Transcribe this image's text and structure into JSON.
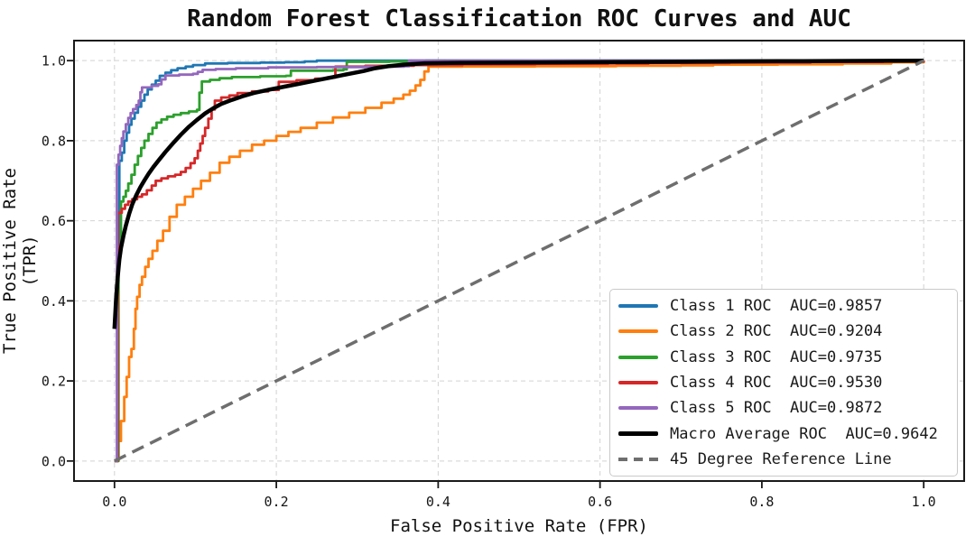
{
  "figure": {
    "background": "#ffffff"
  },
  "chart_data": {
    "type": "line",
    "title": "Random Forest Classification ROC Curves and AUC",
    "xlabel": "False Positive Rate (FPR)",
    "ylabel": "True Positive Rate (TPR)",
    "xlim": [
      -0.05,
      1.05
    ],
    "ylim": [
      -0.05,
      1.05
    ],
    "xticks": [
      0.0,
      0.2,
      0.4,
      0.6,
      0.8,
      1.0
    ],
    "yticks": [
      0.0,
      0.2,
      0.4,
      0.6,
      0.8,
      1.0
    ],
    "grid": true,
    "grid_color": "#d2d2d2",
    "frame_color": "#1a1a1a",
    "legend_position": "lower right",
    "series": [
      {
        "name": "Class 1 ROC",
        "auc": 0.9857,
        "label": "Class 1 ROC  AUC=0.9857",
        "color": "#1f77b4",
        "width": 2.8,
        "step": true,
        "points": [
          [
            0,
            0
          ],
          [
            0.004,
            0.18
          ],
          [
            0.004,
            0.52
          ],
          [
            0.006,
            0.75
          ],
          [
            0.009,
            0.77
          ],
          [
            0.012,
            0.8
          ],
          [
            0.015,
            0.82
          ],
          [
            0.018,
            0.84
          ],
          [
            0.021,
            0.855
          ],
          [
            0.025,
            0.87
          ],
          [
            0.029,
            0.885
          ],
          [
            0.033,
            0.9
          ],
          [
            0.037,
            0.915
          ],
          [
            0.041,
            0.928
          ],
          [
            0.046,
            0.94
          ],
          [
            0.051,
            0.95
          ],
          [
            0.056,
            0.962
          ],
          [
            0.063,
            0.97
          ],
          [
            0.07,
            0.976
          ],
          [
            0.078,
            0.981
          ],
          [
            0.088,
            0.985
          ],
          [
            0.097,
            0.989
          ],
          [
            0.112,
            0.993
          ],
          [
            0.14,
            0.994
          ],
          [
            0.18,
            0.995
          ],
          [
            0.21,
            0.996
          ],
          [
            0.235,
            0.998
          ],
          [
            0.25,
            1.0
          ],
          [
            1,
            1
          ]
        ]
      },
      {
        "name": "Class 2 ROC",
        "auc": 0.9204,
        "label": "Class 2 ROC  AUC=0.9204",
        "color": "#ff7f0e",
        "width": 2.8,
        "step": true,
        "points": [
          [
            0,
            0
          ],
          [
            0.004,
            0.05
          ],
          [
            0.008,
            0.1
          ],
          [
            0.012,
            0.16
          ],
          [
            0.015,
            0.21
          ],
          [
            0.018,
            0.26
          ],
          [
            0.021,
            0.28
          ],
          [
            0.024,
            0.33
          ],
          [
            0.026,
            0.38
          ],
          [
            0.028,
            0.41
          ],
          [
            0.031,
            0.44
          ],
          [
            0.034,
            0.46
          ],
          [
            0.038,
            0.485
          ],
          [
            0.042,
            0.505
          ],
          [
            0.047,
            0.525
          ],
          [
            0.053,
            0.55
          ],
          [
            0.06,
            0.575
          ],
          [
            0.068,
            0.61
          ],
          [
            0.077,
            0.64
          ],
          [
            0.087,
            0.66
          ],
          [
            0.097,
            0.68
          ],
          [
            0.107,
            0.7
          ],
          [
            0.118,
            0.72
          ],
          [
            0.13,
            0.745
          ],
          [
            0.142,
            0.76
          ],
          [
            0.155,
            0.775
          ],
          [
            0.17,
            0.79
          ],
          [
            0.185,
            0.8
          ],
          [
            0.2,
            0.812
          ],
          [
            0.215,
            0.822
          ],
          [
            0.23,
            0.832
          ],
          [
            0.25,
            0.845
          ],
          [
            0.27,
            0.858
          ],
          [
            0.29,
            0.87
          ],
          [
            0.31,
            0.882
          ],
          [
            0.33,
            0.895
          ],
          [
            0.345,
            0.905
          ],
          [
            0.357,
            0.915
          ],
          [
            0.365,
            0.925
          ],
          [
            0.372,
            0.938
          ],
          [
            0.378,
            0.952
          ],
          [
            0.383,
            0.973
          ],
          [
            0.388,
            0.985
          ],
          [
            0.43,
            0.9855
          ],
          [
            0.52,
            0.986
          ],
          [
            0.62,
            0.987
          ],
          [
            0.7,
            0.988
          ],
          [
            0.74,
            0.99
          ],
          [
            0.82,
            0.991
          ],
          [
            0.9,
            0.993
          ],
          [
            0.96,
            0.996
          ],
          [
            1,
            1
          ]
        ]
      },
      {
        "name": "Class 3 ROC",
        "auc": 0.9735,
        "label": "Class 3 ROC  AUC=0.9735",
        "color": "#2ca02c",
        "width": 2.8,
        "step": true,
        "points": [
          [
            0,
            0
          ],
          [
            0.005,
            0.3
          ],
          [
            0.005,
            0.52
          ],
          [
            0.008,
            0.648
          ],
          [
            0.011,
            0.66
          ],
          [
            0.014,
            0.675
          ],
          [
            0.017,
            0.693
          ],
          [
            0.021,
            0.715
          ],
          [
            0.025,
            0.74
          ],
          [
            0.029,
            0.762
          ],
          [
            0.033,
            0.782
          ],
          [
            0.037,
            0.8
          ],
          [
            0.042,
            0.817
          ],
          [
            0.047,
            0.832
          ],
          [
            0.052,
            0.845
          ],
          [
            0.058,
            0.853
          ],
          [
            0.065,
            0.86
          ],
          [
            0.073,
            0.865
          ],
          [
            0.082,
            0.869
          ],
          [
            0.092,
            0.873
          ],
          [
            0.102,
            0.877
          ],
          [
            0.105,
            0.92
          ],
          [
            0.108,
            0.948
          ],
          [
            0.118,
            0.952
          ],
          [
            0.13,
            0.956
          ],
          [
            0.145,
            0.959
          ],
          [
            0.18,
            0.961
          ],
          [
            0.212,
            0.962
          ],
          [
            0.218,
            0.975
          ],
          [
            0.27,
            0.976
          ],
          [
            0.283,
            0.978
          ],
          [
            0.287,
            0.997
          ],
          [
            0.34,
            0.998
          ],
          [
            0.385,
            1.0
          ],
          [
            1,
            1
          ]
        ]
      },
      {
        "name": "Class 4 ROC",
        "auc": 0.953,
        "label": "Class 4 ROC  AUC=0.9530",
        "color": "#d62728",
        "width": 2.8,
        "step": true,
        "points": [
          [
            0,
            0
          ],
          [
            0.004,
            0.3
          ],
          [
            0.004,
            0.62
          ],
          [
            0.009,
            0.63
          ],
          [
            0.013,
            0.64
          ],
          [
            0.017,
            0.648
          ],
          [
            0.022,
            0.654
          ],
          [
            0.028,
            0.66
          ],
          [
            0.034,
            0.666
          ],
          [
            0.04,
            0.676
          ],
          [
            0.046,
            0.688
          ],
          [
            0.051,
            0.7
          ],
          [
            0.058,
            0.706
          ],
          [
            0.066,
            0.711
          ],
          [
            0.075,
            0.715
          ],
          [
            0.082,
            0.722
          ],
          [
            0.088,
            0.732
          ],
          [
            0.094,
            0.744
          ],
          [
            0.099,
            0.756
          ],
          [
            0.103,
            0.775
          ],
          [
            0.106,
            0.793
          ],
          [
            0.109,
            0.812
          ],
          [
            0.112,
            0.832
          ],
          [
            0.116,
            0.855
          ],
          [
            0.12,
            0.878
          ],
          [
            0.124,
            0.9
          ],
          [
            0.132,
            0.908
          ],
          [
            0.142,
            0.913
          ],
          [
            0.152,
            0.919
          ],
          [
            0.17,
            0.923
          ],
          [
            0.19,
            0.927
          ],
          [
            0.203,
            0.947
          ],
          [
            0.225,
            0.951
          ],
          [
            0.248,
            0.955
          ],
          [
            0.263,
            0.958
          ],
          [
            0.273,
            0.985
          ],
          [
            0.31,
            0.987
          ],
          [
            0.37,
            0.989
          ],
          [
            0.43,
            0.991
          ],
          [
            0.52,
            0.992
          ],
          [
            0.61,
            0.993
          ],
          [
            0.66,
            0.994
          ],
          [
            0.76,
            0.995
          ],
          [
            0.86,
            0.997
          ],
          [
            0.95,
            0.998
          ],
          [
            1,
            1
          ]
        ]
      },
      {
        "name": "Class 5 ROC",
        "auc": 0.9872,
        "label": "Class 5 ROC  AUC=0.9872",
        "color": "#9467bd",
        "width": 2.8,
        "step": true,
        "points": [
          [
            0,
            0
          ],
          [
            0.003,
            0.4
          ],
          [
            0.003,
            0.74
          ],
          [
            0.005,
            0.765
          ],
          [
            0.007,
            0.787
          ],
          [
            0.009,
            0.806
          ],
          [
            0.011,
            0.823
          ],
          [
            0.014,
            0.841
          ],
          [
            0.017,
            0.857
          ],
          [
            0.02,
            0.869
          ],
          [
            0.023,
            0.879
          ],
          [
            0.027,
            0.889
          ],
          [
            0.03,
            0.9
          ],
          [
            0.032,
            0.921
          ],
          [
            0.034,
            0.933
          ],
          [
            0.046,
            0.937
          ],
          [
            0.054,
            0.941
          ],
          [
            0.058,
            0.953
          ],
          [
            0.063,
            0.963
          ],
          [
            0.08,
            0.965
          ],
          [
            0.097,
            0.967
          ],
          [
            0.103,
            0.972
          ],
          [
            0.109,
            0.977
          ],
          [
            0.125,
            0.979
          ],
          [
            0.15,
            0.981
          ],
          [
            0.19,
            0.983
          ],
          [
            0.25,
            0.984
          ],
          [
            0.31,
            0.985
          ],
          [
            0.358,
            0.986
          ],
          [
            0.364,
            1.0
          ],
          [
            1,
            1
          ]
        ]
      },
      {
        "name": "Macro Average ROC",
        "auc": 0.9642,
        "label": "Macro Average ROC  AUC=0.9642",
        "color": "#000000",
        "width": 4.5,
        "step": false,
        "points": [
          [
            0,
            0.33
          ],
          [
            0.002,
            0.405
          ],
          [
            0.004,
            0.46
          ],
          [
            0.006,
            0.503
          ],
          [
            0.008,
            0.532
          ],
          [
            0.011,
            0.562
          ],
          [
            0.014,
            0.588
          ],
          [
            0.018,
            0.617
          ],
          [
            0.022,
            0.641
          ],
          [
            0.027,
            0.664
          ],
          [
            0.032,
            0.684
          ],
          [
            0.037,
            0.701
          ],
          [
            0.042,
            0.717
          ],
          [
            0.048,
            0.734
          ],
          [
            0.055,
            0.752
          ],
          [
            0.063,
            0.772
          ],
          [
            0.072,
            0.793
          ],
          [
            0.082,
            0.815
          ],
          [
            0.092,
            0.835
          ],
          [
            0.102,
            0.852
          ],
          [
            0.112,
            0.868
          ],
          [
            0.122,
            0.881
          ],
          [
            0.132,
            0.892
          ],
          [
            0.145,
            0.902
          ],
          [
            0.158,
            0.911
          ],
          [
            0.172,
            0.919
          ],
          [
            0.19,
            0.927
          ],
          [
            0.21,
            0.935
          ],
          [
            0.23,
            0.943
          ],
          [
            0.25,
            0.951
          ],
          [
            0.27,
            0.959
          ],
          [
            0.29,
            0.967
          ],
          [
            0.308,
            0.974
          ],
          [
            0.322,
            0.981
          ],
          [
            0.338,
            0.986
          ],
          [
            0.358,
            0.99
          ],
          [
            0.383,
            0.9935
          ],
          [
            0.43,
            0.9945
          ],
          [
            0.52,
            0.9955
          ],
          [
            0.62,
            0.9965
          ],
          [
            0.72,
            0.9975
          ],
          [
            0.82,
            0.9985
          ],
          [
            0.91,
            0.9993
          ],
          [
            1,
            1
          ]
        ]
      },
      {
        "name": "45 Degree Reference Line",
        "label": "45 Degree Reference Line",
        "color": "#6e6e6e",
        "width": 3.5,
        "step": false,
        "dash": [
          14,
          8
        ],
        "points": [
          [
            0,
            0
          ],
          [
            1,
            1
          ]
        ]
      }
    ]
  }
}
